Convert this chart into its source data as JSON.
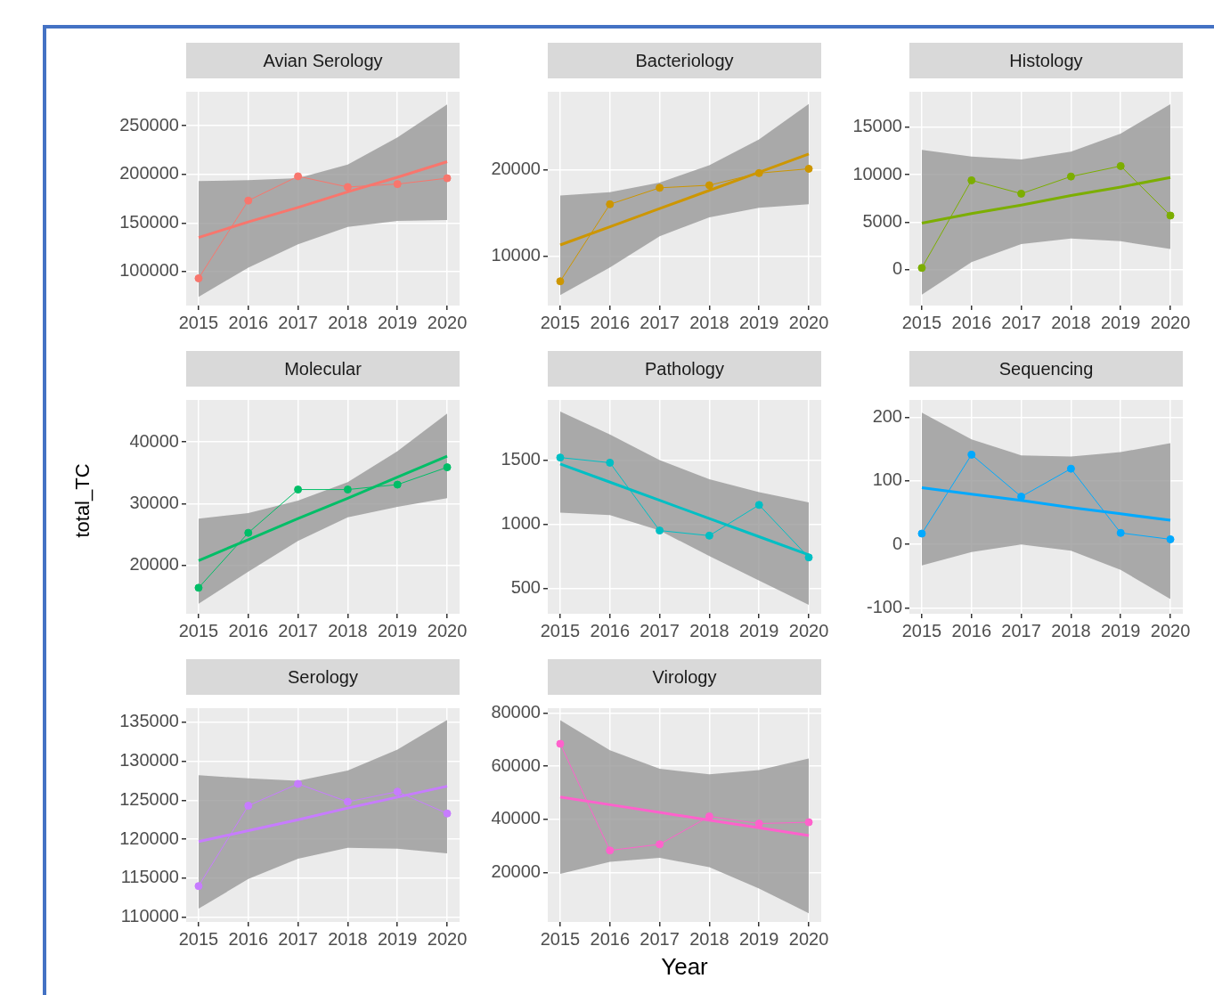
{
  "chart_data": [
    {
      "type": "line",
      "title": "Avian Serology",
      "x": [
        2015,
        2016,
        2017,
        2018,
        2019,
        2020
      ],
      "xlim": [
        2014.75,
        2020.25
      ],
      "xticks": [
        2015,
        2016,
        2017,
        2018,
        2019,
        2020
      ],
      "ylim": [
        65000,
        285000
      ],
      "yticks": [
        100000,
        150000,
        200000,
        250000
      ],
      "grid": true,
      "series": [
        {
          "type": "line",
          "color": "#f8766d",
          "marker": "circle",
          "values": [
            93000,
            173000,
            198000,
            187000,
            190000,
            196000
          ]
        },
        {
          "type": "line",
          "color": "#f8766d",
          "marker": "none",
          "values": [
            135000,
            151000,
            166000,
            182000,
            197000,
            213000
          ],
          "lower": [
            74000,
            104000,
            128000,
            146000,
            152000,
            153000
          ],
          "upper": [
            193000,
            194000,
            196000,
            210000,
            238000,
            272000
          ]
        }
      ]
    },
    {
      "type": "line",
      "title": "Bacteriology",
      "x": [
        2015,
        2016,
        2017,
        2018,
        2019,
        2020
      ],
      "xlim": [
        2014.75,
        2020.25
      ],
      "xticks": [
        2015,
        2016,
        2017,
        2018,
        2019,
        2020
      ],
      "ylim": [
        4300,
        29000
      ],
      "yticks": [
        10000,
        20000
      ],
      "grid": true,
      "series": [
        {
          "type": "line",
          "color": "#cd9600",
          "marker": "circle",
          "values": [
            7100,
            16000,
            17900,
            18200,
            19600,
            20100
          ]
        },
        {
          "type": "line",
          "color": "#cd9600",
          "marker": "none",
          "values": [
            11300,
            13400,
            15500,
            17600,
            19700,
            21800
          ],
          "lower": [
            5500,
            8700,
            12300,
            14500,
            15600,
            16000
          ],
          "upper": [
            17000,
            17400,
            18500,
            20500,
            23500,
            27600
          ]
        }
      ]
    },
    {
      "type": "line",
      "title": "Histology",
      "x": [
        2015,
        2016,
        2017,
        2018,
        2019,
        2020
      ],
      "xlim": [
        2014.75,
        2020.25
      ],
      "xticks": [
        2015,
        2016,
        2017,
        2018,
        2019,
        2020
      ],
      "ylim": [
        -3750,
        18700
      ],
      "yticks": [
        0,
        5000,
        10000,
        15000
      ],
      "grid": true,
      "series": [
        {
          "type": "line",
          "color": "#7cae00",
          "marker": "circle",
          "values": [
            200,
            9400,
            8000,
            9800,
            10900,
            5700
          ]
        },
        {
          "type": "line",
          "color": "#7cae00",
          "marker": "none",
          "values": [
            4900,
            5900,
            6800,
            7800,
            8700,
            9700
          ],
          "lower": [
            -2600,
            800,
            2700,
            3300,
            3000,
            2200
          ],
          "upper": [
            12600,
            11900,
            11600,
            12400,
            14300,
            17400
          ]
        }
      ]
    },
    {
      "type": "line",
      "title": "Molecular",
      "ylabel": "total_TC",
      "x": [
        2015,
        2016,
        2017,
        2018,
        2019,
        2020
      ],
      "xlim": [
        2014.75,
        2020.25
      ],
      "xticks": [
        2015,
        2016,
        2017,
        2018,
        2019,
        2020
      ],
      "ylim": [
        12200,
        46800
      ],
      "yticks": [
        20000,
        30000,
        40000
      ],
      "grid": true,
      "series": [
        {
          "type": "line",
          "color": "#00be67",
          "marker": "circle",
          "values": [
            16400,
            25300,
            32300,
            32300,
            33100,
            35900
          ]
        },
        {
          "type": "line",
          "color": "#00be67",
          "marker": "none",
          "values": [
            20800,
            24200,
            27600,
            30900,
            34300,
            37700
          ],
          "lower": [
            13800,
            19000,
            24000,
            27800,
            29500,
            30900
          ],
          "upper": [
            27600,
            28500,
            30500,
            33500,
            38500,
            44600
          ]
        }
      ]
    },
    {
      "type": "line",
      "title": "Pathology",
      "x": [
        2015,
        2016,
        2017,
        2018,
        2019,
        2020
      ],
      "xlim": [
        2014.75,
        2020.25
      ],
      "xticks": [
        2015,
        2016,
        2017,
        2018,
        2019,
        2020
      ],
      "ylim": [
        300,
        1970
      ],
      "yticks": [
        500,
        1000,
        1500
      ],
      "grid": true,
      "series": [
        {
          "type": "line",
          "color": "#00bfc4",
          "marker": "circle",
          "values": [
            1520,
            1480,
            950,
            910,
            1150,
            740
          ]
        },
        {
          "type": "line",
          "color": "#00bfc4",
          "marker": "none",
          "values": [
            1470,
            1328,
            1186,
            1044,
            902,
            760
          ],
          "lower": [
            1090,
            1070,
            950,
            750,
            560,
            370
          ],
          "upper": [
            1880,
            1700,
            1500,
            1350,
            1250,
            1170
          ]
        }
      ]
    },
    {
      "type": "line",
      "title": "Sequencing",
      "x": [
        2015,
        2016,
        2017,
        2018,
        2019,
        2020
      ],
      "xlim": [
        2014.75,
        2020.25
      ],
      "xticks": [
        2015,
        2016,
        2017,
        2018,
        2019,
        2020
      ],
      "ylim": [
        -109,
        227
      ],
      "yticks": [
        -100,
        0,
        100,
        200
      ],
      "grid": true,
      "series": [
        {
          "type": "line",
          "color": "#00a9ff",
          "marker": "circle",
          "values": [
            17,
            141,
            75,
            119,
            18,
            8
          ]
        },
        {
          "type": "line",
          "color": "#00a9ff",
          "marker": "none",
          "values": [
            89,
            79,
            69,
            58,
            48,
            38
          ],
          "lower": [
            -33,
            -12,
            0,
            -10,
            -40,
            -86
          ],
          "upper": [
            207,
            165,
            140,
            138,
            145,
            159
          ]
        }
      ]
    },
    {
      "type": "line",
      "title": "Serology",
      "x": [
        2015,
        2016,
        2017,
        2018,
        2019,
        2020
      ],
      "xlim": [
        2014.75,
        2020.25
      ],
      "xticks": [
        2015,
        2016,
        2017,
        2018,
        2019,
        2020
      ],
      "ylim": [
        109400,
        136800
      ],
      "yticks": [
        110000,
        115000,
        120000,
        125000,
        130000,
        135000
      ],
      "grid": true,
      "series": [
        {
          "type": "line",
          "color": "#c77cff",
          "marker": "circle",
          "values": [
            114000,
            124300,
            127100,
            124800,
            126100,
            123300
          ]
        },
        {
          "type": "line",
          "color": "#c77cff",
          "marker": "none",
          "values": [
            119700,
            121100,
            122500,
            124000,
            125400,
            126800
          ],
          "lower": [
            111100,
            114900,
            117500,
            118900,
            118800,
            118200
          ],
          "upper": [
            128200,
            127800,
            127500,
            128800,
            131500,
            135300
          ]
        }
      ]
    },
    {
      "type": "line",
      "title": "Virology",
      "xlabel": "Year",
      "x": [
        2015,
        2016,
        2017,
        2018,
        2019,
        2020
      ],
      "xlim": [
        2014.75,
        2020.25
      ],
      "xticks": [
        2015,
        2016,
        2017,
        2018,
        2019,
        2020
      ],
      "ylim": [
        1400,
        81800
      ],
      "yticks": [
        20000,
        40000,
        60000,
        80000
      ],
      "grid": true,
      "series": [
        {
          "type": "line",
          "color": "#ff61cc",
          "marker": "circle",
          "values": [
            68400,
            28300,
            30600,
            41100,
            38400,
            38900
          ]
        },
        {
          "type": "line",
          "color": "#ff61cc",
          "marker": "none",
          "values": [
            48400,
            45500,
            42600,
            39700,
            36800,
            33900
          ],
          "lower": [
            19500,
            24000,
            25500,
            22000,
            14000,
            4700
          ],
          "upper": [
            77300,
            66000,
            59000,
            56900,
            58500,
            62900
          ]
        }
      ]
    }
  ]
}
